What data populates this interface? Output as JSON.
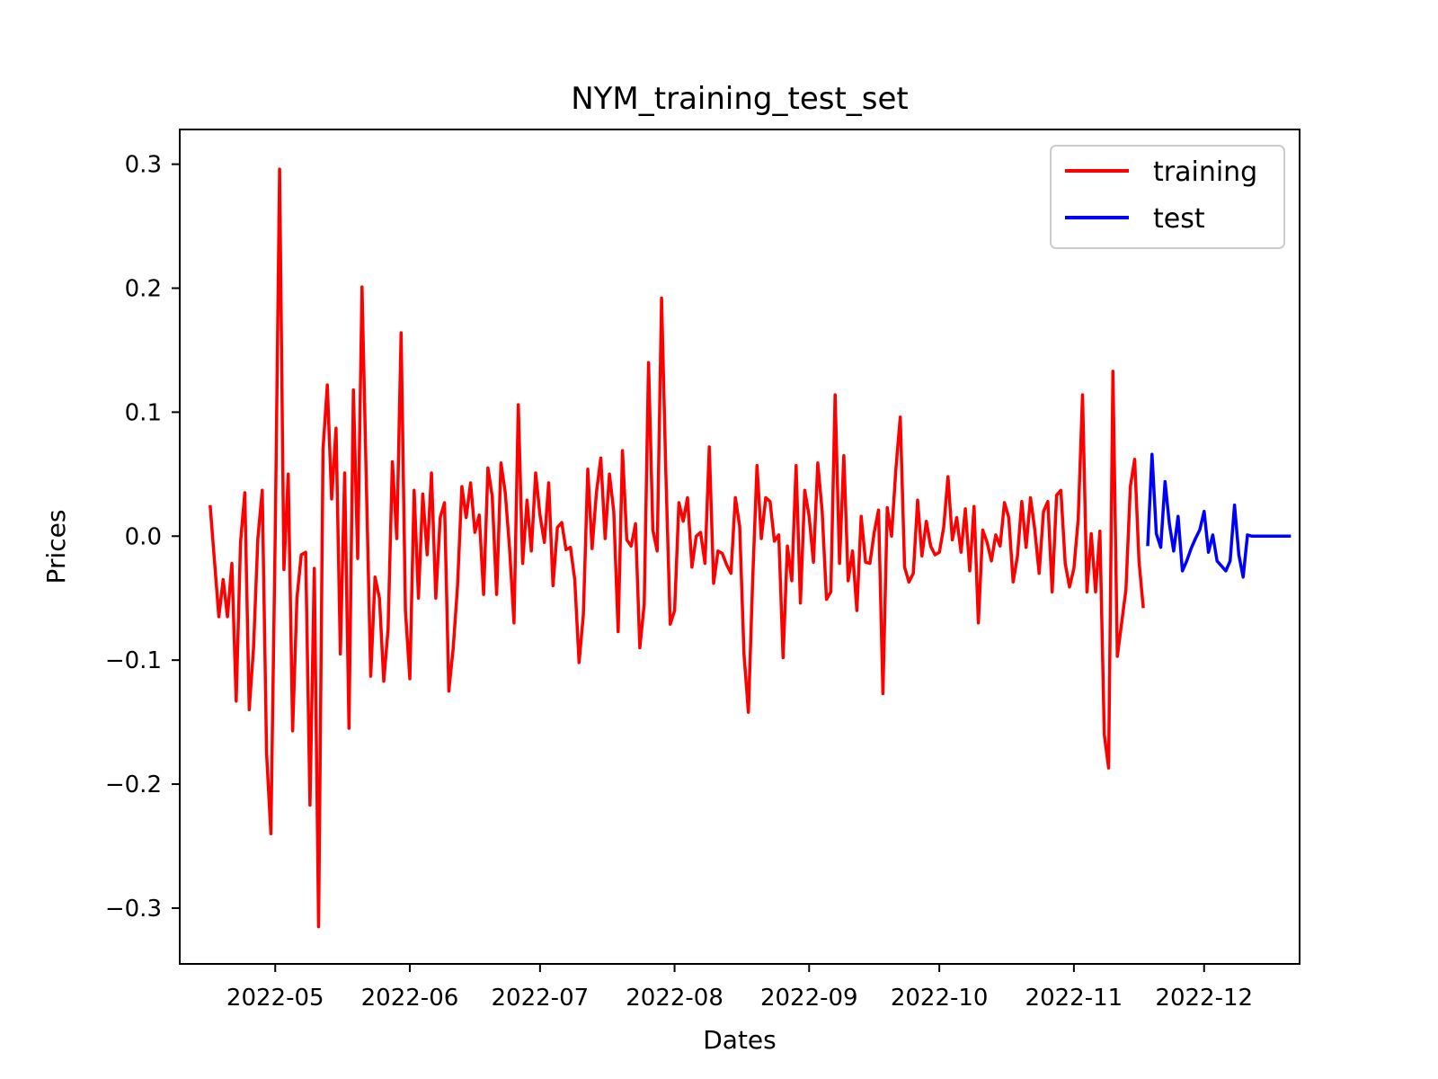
{
  "chart_data": {
    "type": "line",
    "title": "NYM_training_test_set",
    "xlabel": "Dates",
    "ylabel": "Prices",
    "xlim": [
      "2022-04-09",
      "2022-12-23"
    ],
    "ylim": [
      -0.345,
      0.328
    ],
    "x_ticks": [
      "2022-05",
      "2022-06",
      "2022-07",
      "2022-08",
      "2022-09",
      "2022-10",
      "2022-11",
      "2022-12"
    ],
    "x_tick_dates": [
      "2022-05-01",
      "2022-06-01",
      "2022-07-01",
      "2022-08-01",
      "2022-09-01",
      "2022-10-01",
      "2022-11-01",
      "2022-12-01"
    ],
    "y_ticks": [
      0.3,
      0.2,
      0.1,
      0.0,
      -0.1,
      -0.2,
      -0.3
    ],
    "y_tick_labels": [
      "0.3",
      "0.2",
      "0.1",
      "0.0",
      "−0.1",
      "−0.2",
      "−0.3"
    ],
    "grid": false,
    "legend_position": "top-right",
    "series": [
      {
        "name": "training",
        "color": "#ff0000",
        "x": [
          "2022-04-16",
          "2022-04-18",
          "2022-04-19",
          "2022-04-20",
          "2022-04-21",
          "2022-04-22",
          "2022-04-23",
          "2022-04-24",
          "2022-04-25",
          "2022-04-26",
          "2022-04-27",
          "2022-04-28",
          "2022-04-29",
          "2022-04-30",
          "2022-05-01",
          "2022-05-02",
          "2022-05-03",
          "2022-05-04",
          "2022-05-05",
          "2022-05-06",
          "2022-05-07",
          "2022-05-08",
          "2022-05-09",
          "2022-05-10",
          "2022-05-11",
          "2022-05-12",
          "2022-05-13",
          "2022-05-14",
          "2022-05-15",
          "2022-05-16",
          "2022-05-17",
          "2022-05-18",
          "2022-05-19",
          "2022-05-20",
          "2022-05-21",
          "2022-05-22",
          "2022-05-23",
          "2022-05-24",
          "2022-05-25",
          "2022-05-26",
          "2022-05-27",
          "2022-05-28",
          "2022-05-29",
          "2022-05-30",
          "2022-05-31",
          "2022-06-01",
          "2022-06-02",
          "2022-06-03",
          "2022-06-04",
          "2022-06-05",
          "2022-06-06",
          "2022-06-07",
          "2022-06-08",
          "2022-06-09",
          "2022-06-10",
          "2022-06-11",
          "2022-06-12",
          "2022-06-13",
          "2022-06-14",
          "2022-06-15",
          "2022-06-16",
          "2022-06-17",
          "2022-06-18",
          "2022-06-19",
          "2022-06-20",
          "2022-06-21",
          "2022-06-22",
          "2022-06-23",
          "2022-06-24",
          "2022-06-25",
          "2022-06-26",
          "2022-06-27",
          "2022-06-28",
          "2022-06-29",
          "2022-06-30",
          "2022-07-01",
          "2022-07-02",
          "2022-07-03",
          "2022-07-04",
          "2022-07-05",
          "2022-07-06",
          "2022-07-07",
          "2022-07-08",
          "2022-07-09",
          "2022-07-10",
          "2022-07-11",
          "2022-07-12",
          "2022-07-13",
          "2022-07-14",
          "2022-07-15",
          "2022-07-16",
          "2022-07-17",
          "2022-07-18",
          "2022-07-19",
          "2022-07-20",
          "2022-07-21",
          "2022-07-22",
          "2022-07-23",
          "2022-07-24",
          "2022-07-25",
          "2022-07-26",
          "2022-07-27",
          "2022-07-28",
          "2022-07-29",
          "2022-07-30",
          "2022-07-31",
          "2022-08-01",
          "2022-08-02",
          "2022-08-03",
          "2022-08-04",
          "2022-08-05",
          "2022-08-06",
          "2022-08-07",
          "2022-08-08",
          "2022-08-09",
          "2022-08-10",
          "2022-08-11",
          "2022-08-12",
          "2022-08-13",
          "2022-08-14",
          "2022-08-15",
          "2022-08-16",
          "2022-08-17",
          "2022-08-18",
          "2022-08-19",
          "2022-08-20",
          "2022-08-21",
          "2022-08-22",
          "2022-08-23",
          "2022-08-24",
          "2022-08-25",
          "2022-08-26",
          "2022-08-27",
          "2022-08-28",
          "2022-08-29",
          "2022-08-30",
          "2022-08-31",
          "2022-09-01",
          "2022-09-02",
          "2022-09-03",
          "2022-09-04",
          "2022-09-05",
          "2022-09-06",
          "2022-09-07",
          "2022-09-08",
          "2022-09-09",
          "2022-09-10",
          "2022-09-11",
          "2022-09-12",
          "2022-09-13",
          "2022-09-14",
          "2022-09-15",
          "2022-09-16",
          "2022-09-17",
          "2022-09-18",
          "2022-09-19",
          "2022-09-20",
          "2022-09-21",
          "2022-09-22",
          "2022-09-23",
          "2022-09-24",
          "2022-09-25",
          "2022-09-26",
          "2022-09-27",
          "2022-09-28",
          "2022-09-29",
          "2022-09-30",
          "2022-10-01",
          "2022-10-02",
          "2022-10-03",
          "2022-10-04",
          "2022-10-05",
          "2022-10-06",
          "2022-10-07",
          "2022-10-08",
          "2022-10-09",
          "2022-10-10",
          "2022-10-11",
          "2022-10-12",
          "2022-10-13",
          "2022-10-14",
          "2022-10-15",
          "2022-10-16",
          "2022-10-17",
          "2022-10-18",
          "2022-10-19",
          "2022-10-20",
          "2022-10-21",
          "2022-10-22",
          "2022-10-23",
          "2022-10-24",
          "2022-10-25",
          "2022-10-26",
          "2022-10-27",
          "2022-10-28",
          "2022-10-29",
          "2022-10-30",
          "2022-10-31",
          "2022-11-01",
          "2022-11-02",
          "2022-11-03",
          "2022-11-04",
          "2022-11-05",
          "2022-11-06",
          "2022-11-07",
          "2022-11-08",
          "2022-11-09",
          "2022-11-10",
          "2022-11-11",
          "2022-11-12",
          "2022-11-13",
          "2022-11-14",
          "2022-11-15",
          "2022-11-16",
          "2022-11-17"
        ],
        "values": [
          0.025,
          -0.065,
          -0.035,
          -0.065,
          -0.022,
          -0.133,
          -0.005,
          0.035,
          -0.14,
          -0.09,
          -0.002,
          0.037,
          -0.175,
          -0.24,
          0.0,
          0.296,
          -0.027,
          0.05,
          -0.157,
          -0.05,
          -0.015,
          -0.013,
          -0.217,
          -0.026,
          -0.315,
          0.07,
          0.122,
          0.03,
          0.087,
          -0.095,
          0.051,
          -0.155,
          0.118,
          -0.018,
          0.201,
          0.04,
          -0.113,
          -0.033,
          -0.05,
          -0.117,
          -0.075,
          0.06,
          -0.002,
          0.164,
          -0.06,
          -0.115,
          0.037,
          -0.05,
          0.034,
          -0.015,
          0.051,
          -0.05,
          0.015,
          0.027,
          -0.125,
          -0.09,
          -0.04,
          0.04,
          0.015,
          0.043,
          0.003,
          0.017,
          -0.047,
          0.055,
          0.032,
          -0.047,
          0.059,
          0.035,
          -0.01,
          -0.07,
          0.106,
          -0.022,
          0.029,
          -0.012,
          0.051,
          0.017,
          -0.005,
          0.043,
          -0.04,
          0.007,
          0.011,
          -0.011,
          -0.009,
          -0.035,
          -0.102,
          -0.063,
          0.054,
          -0.01,
          0.035,
          0.063,
          -0.002,
          0.05,
          0.02,
          -0.077,
          0.069,
          -0.003,
          -0.008,
          0.01,
          -0.09,
          -0.055,
          0.14,
          0.005,
          -0.012,
          0.192,
          0.05,
          -0.071,
          -0.06,
          0.027,
          0.012,
          0.031,
          -0.025,
          0.0,
          0.003,
          -0.022,
          0.072,
          -0.038,
          -0.012,
          -0.014,
          -0.023,
          -0.03,
          0.031,
          0.008,
          -0.095,
          -0.142,
          -0.035,
          0.057,
          -0.002,
          0.031,
          0.028,
          -0.004,
          0.001,
          -0.098,
          -0.008,
          -0.036,
          0.057,
          -0.054,
          0.037,
          0.016,
          -0.021,
          0.059,
          0.02,
          -0.051,
          -0.045,
          0.114,
          -0.022,
          0.065,
          -0.036,
          -0.012,
          -0.06,
          0.016,
          -0.021,
          -0.022,
          0.003,
          0.021,
          -0.127,
          0.023,
          0.0,
          0.055,
          0.096,
          -0.025,
          -0.037,
          -0.03,
          0.029,
          -0.016,
          0.012,
          -0.008,
          -0.015,
          -0.013,
          0.007,
          0.048,
          -0.003,
          0.015,
          -0.013,
          0.022,
          -0.028,
          0.024,
          -0.07,
          0.005,
          -0.005,
          -0.02,
          0.001,
          -0.008,
          0.027,
          0.015,
          -0.037,
          -0.016,
          0.028,
          -0.009,
          0.031,
          0.005,
          -0.03,
          0.02,
          0.028,
          -0.045,
          0.033,
          0.037,
          -0.022,
          -0.041,
          -0.026,
          0.014,
          0.114,
          -0.045,
          0.002,
          -0.045,
          0.004,
          -0.16,
          -0.187,
          0.133,
          -0.097,
          -0.07,
          -0.043,
          0.04,
          0.062,
          -0.02,
          -0.058
        ]
      },
      {
        "name": "test",
        "color": "#0000ff",
        "x": [
          "2022-11-18",
          "2022-11-19",
          "2022-11-20",
          "2022-11-21",
          "2022-11-22",
          "2022-11-23",
          "2022-11-24",
          "2022-11-25",
          "2022-11-26",
          "2022-11-27",
          "2022-11-28",
          "2022-11-29",
          "2022-11-30",
          "2022-12-01",
          "2022-12-02",
          "2022-12-03",
          "2022-12-04",
          "2022-12-05",
          "2022-12-06",
          "2022-12-07",
          "2022-12-08",
          "2022-12-09",
          "2022-12-10",
          "2022-12-11",
          "2022-12-12",
          "2022-12-13",
          "2022-12-14",
          "2022-12-15",
          "2022-12-16",
          "2022-12-17",
          "2022-12-18",
          "2022-12-19",
          "2022-12-20",
          "2022-12-21"
        ],
        "values": [
          -0.008,
          0.066,
          0.002,
          -0.009,
          0.044,
          0.01,
          -0.012,
          0.016,
          -0.028,
          -0.02,
          -0.01,
          -0.002,
          0.005,
          0.02,
          -0.013,
          0.001,
          -0.02,
          -0.024,
          -0.028,
          -0.02,
          0.025,
          -0.015,
          -0.033,
          0.001,
          0.0,
          0.0,
          0.0,
          0.0,
          0.0,
          0.0,
          0.0,
          0.0,
          0.0,
          0.0
        ]
      }
    ]
  }
}
